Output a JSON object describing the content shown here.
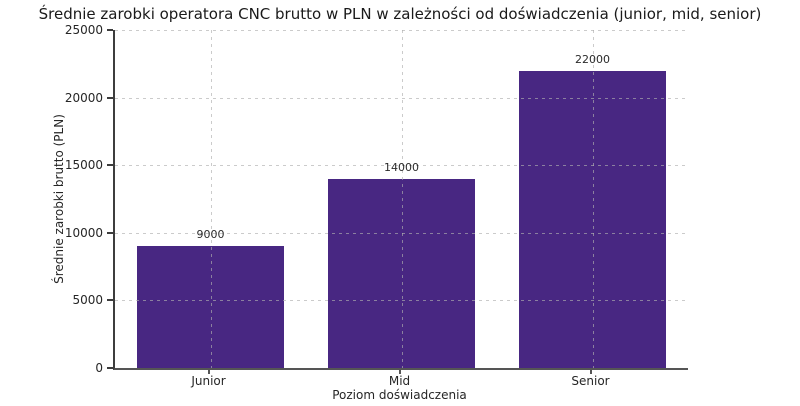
{
  "chart_data": {
    "type": "bar",
    "title": "Średnie zarobki operatora CNC brutto w PLN w zależności od doświadczenia (junior, mid, senior)",
    "categories": [
      "Junior",
      "Mid",
      "Senior"
    ],
    "values": [
      9000,
      14000,
      22000
    ],
    "bar_value_labels": [
      "9000",
      "14000",
      "22000"
    ],
    "xlabel": "Poziom doświadczenia",
    "ylabel": "Średnie zarobki brutto (PLN)",
    "ylim": [
      0,
      25000
    ],
    "yticks": [
      0,
      5000,
      10000,
      15000,
      20000,
      25000
    ],
    "ytick_labels": [
      "0",
      "5000",
      "10000",
      "15000",
      "20000",
      "25000"
    ],
    "grid": true,
    "grid_style": "dashed",
    "legend": "none",
    "colors": {
      "bar": "#482782",
      "background": "#ffffff",
      "grid": "#c9c9c9",
      "axis": "#3d3d3d",
      "text": "#262626"
    }
  }
}
